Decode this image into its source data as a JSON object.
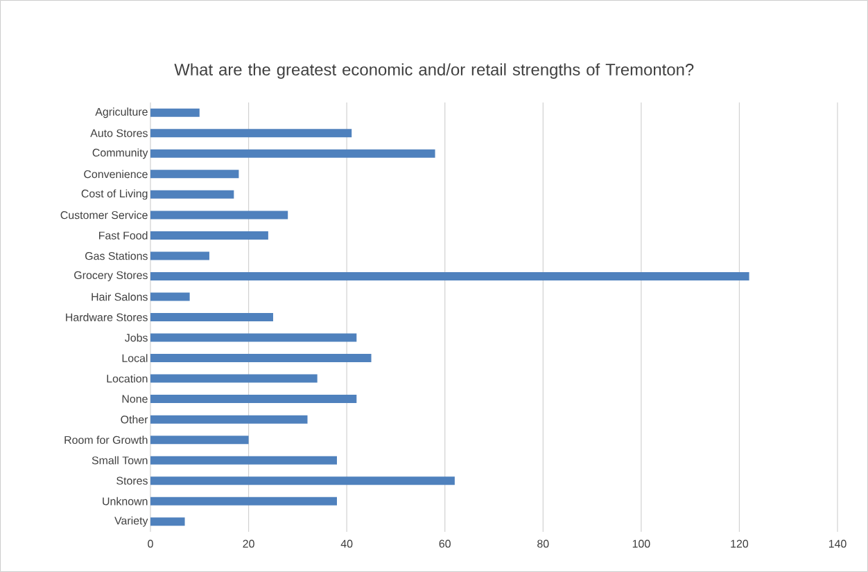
{
  "chart_data": {
    "type": "bar",
    "orientation": "horizontal",
    "title": "What are the greatest economic and/or retail strengths of Tremonton?",
    "categories": [
      "Agriculture",
      "Auto Stores",
      "Community",
      "Convenience",
      "Cost of Living",
      "Customer Service",
      "Fast Food",
      "Gas Stations",
      "Grocery Stores",
      "Hair Salons",
      "Hardware Stores",
      "Jobs",
      "Local",
      "Location",
      "None",
      "Other",
      "Room for Growth",
      "Small Town",
      "Stores",
      "Unknown",
      "Variety"
    ],
    "values": [
      10,
      41,
      58,
      18,
      17,
      28,
      24,
      12,
      122,
      8,
      25,
      42,
      45,
      34,
      42,
      32,
      20,
      38,
      62,
      38,
      7
    ],
    "color": "#4f81bd",
    "xlim": [
      0,
      140
    ],
    "xticks": [
      0,
      20,
      40,
      60,
      80,
      100,
      120,
      140
    ],
    "grid": "x"
  }
}
